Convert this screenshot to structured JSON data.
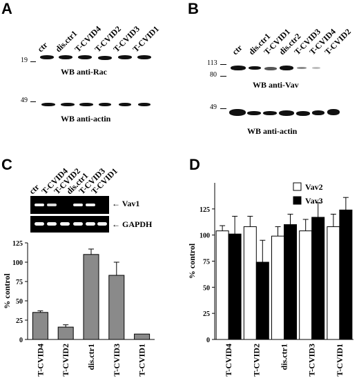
{
  "panelA": {
    "letter": "A",
    "lanes": [
      "ctr",
      "dis.ctr1",
      "T-CVID4",
      "T-CVID2",
      "T-CVID3",
      "T-CVID1"
    ],
    "blot1": {
      "mw": "19",
      "caption": "WB anti-Rac"
    },
    "blot2": {
      "mw": "49",
      "caption": "WB anti-actin"
    }
  },
  "panelB": {
    "letter": "B",
    "lanes": [
      "ctr",
      "dis.ctr1",
      "T-CVID1",
      "dis.ctr2",
      "T-CVID3",
      "T-CVID4",
      "T-CVID2"
    ],
    "blot1": {
      "mw_top": "113",
      "mw_bottom": "80",
      "caption": "WB anti-Vav"
    },
    "blot2": {
      "mw": "49",
      "caption": "WB anti-actin"
    }
  },
  "panelC": {
    "letter": "C",
    "lanes": [
      "ctr",
      "T-CVID4",
      "T-CVID2",
      "dis.ctr1",
      "T-CVID3",
      "T-CVID1"
    ],
    "gel_labels": [
      "Vav1",
      "GAPDH"
    ]
  },
  "panelD": {
    "letter": "D"
  },
  "chart_data": [
    {
      "type": "bar",
      "panel": "C",
      "categories": [
        "T-CVID4",
        "T-CVID2",
        "dis.ctr1",
        "T-CVID3",
        "T-CVID1"
      ],
      "series": [
        {
          "values": [
            35,
            16,
            110,
            83,
            7
          ],
          "errors": [
            2,
            3,
            7,
            17,
            0
          ]
        }
      ],
      "ylabel": "% control",
      "ylim": [
        0,
        125
      ],
      "yticks": [
        0,
        25,
        50,
        75,
        100,
        125
      ],
      "bar_color": "#8a8a8a"
    },
    {
      "type": "bar",
      "panel": "D",
      "categories": [
        "T-CVID4",
        "T-CVID2",
        "dis.ctr1",
        "T-CVID3",
        "T-CVID1"
      ],
      "series": [
        {
          "name": "Vav2",
          "values": [
            104,
            108,
            99,
            104,
            108
          ],
          "errors": [
            5,
            10,
            9,
            11,
            12
          ],
          "color": "#ffffff"
        },
        {
          "name": "Vav3",
          "values": [
            101,
            74,
            110,
            117,
            124
          ],
          "errors": [
            17,
            21,
            10,
            14,
            12
          ],
          "color": "#000000"
        }
      ],
      "ylabel": "% control",
      "ylim": [
        0,
        150
      ],
      "yticks": [
        0,
        25,
        50,
        75,
        100,
        125
      ],
      "legend": "top-right"
    }
  ]
}
